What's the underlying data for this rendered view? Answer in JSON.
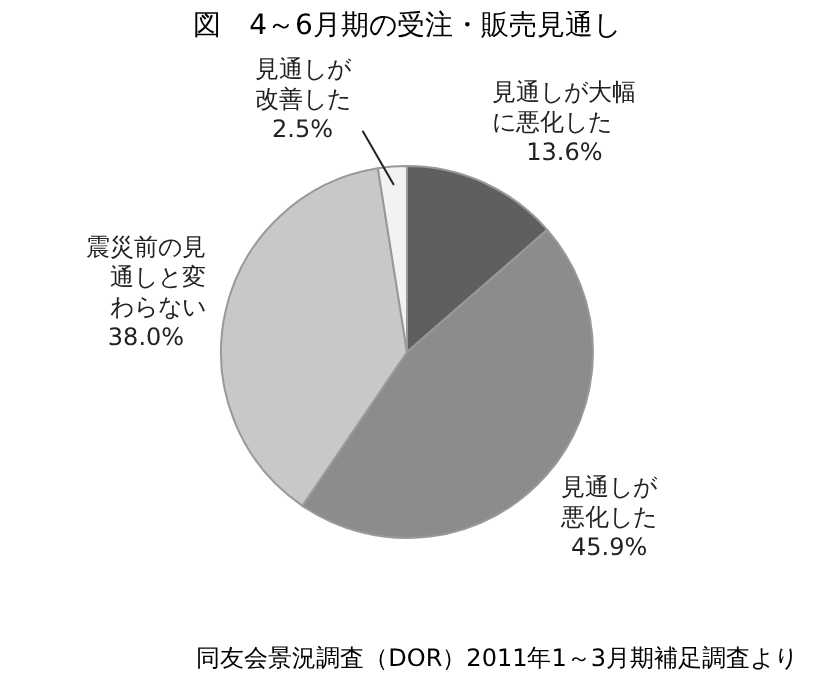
{
  "chart_data": {
    "type": "pie",
    "title": "図　4～6月期の受注・販売見通し",
    "categories": [
      "見通しが大幅に悪化した",
      "見通しが悪化した",
      "震災前の見通しと変わらない",
      "見通しが改善した"
    ],
    "values": [
      13.6,
      45.9,
      38.0,
      2.5
    ],
    "colors": [
      "#5f5f5f",
      "#8c8c8c",
      "#c8c8c8",
      "#f2f2f2"
    ],
    "value_labels": [
      "13.6%",
      "45.9%",
      "38.0%",
      "2.5%"
    ],
    "legend": false,
    "annotations": [
      "同友会景況調査（DOR）2011年1～3月期補足調査より"
    ]
  }
}
